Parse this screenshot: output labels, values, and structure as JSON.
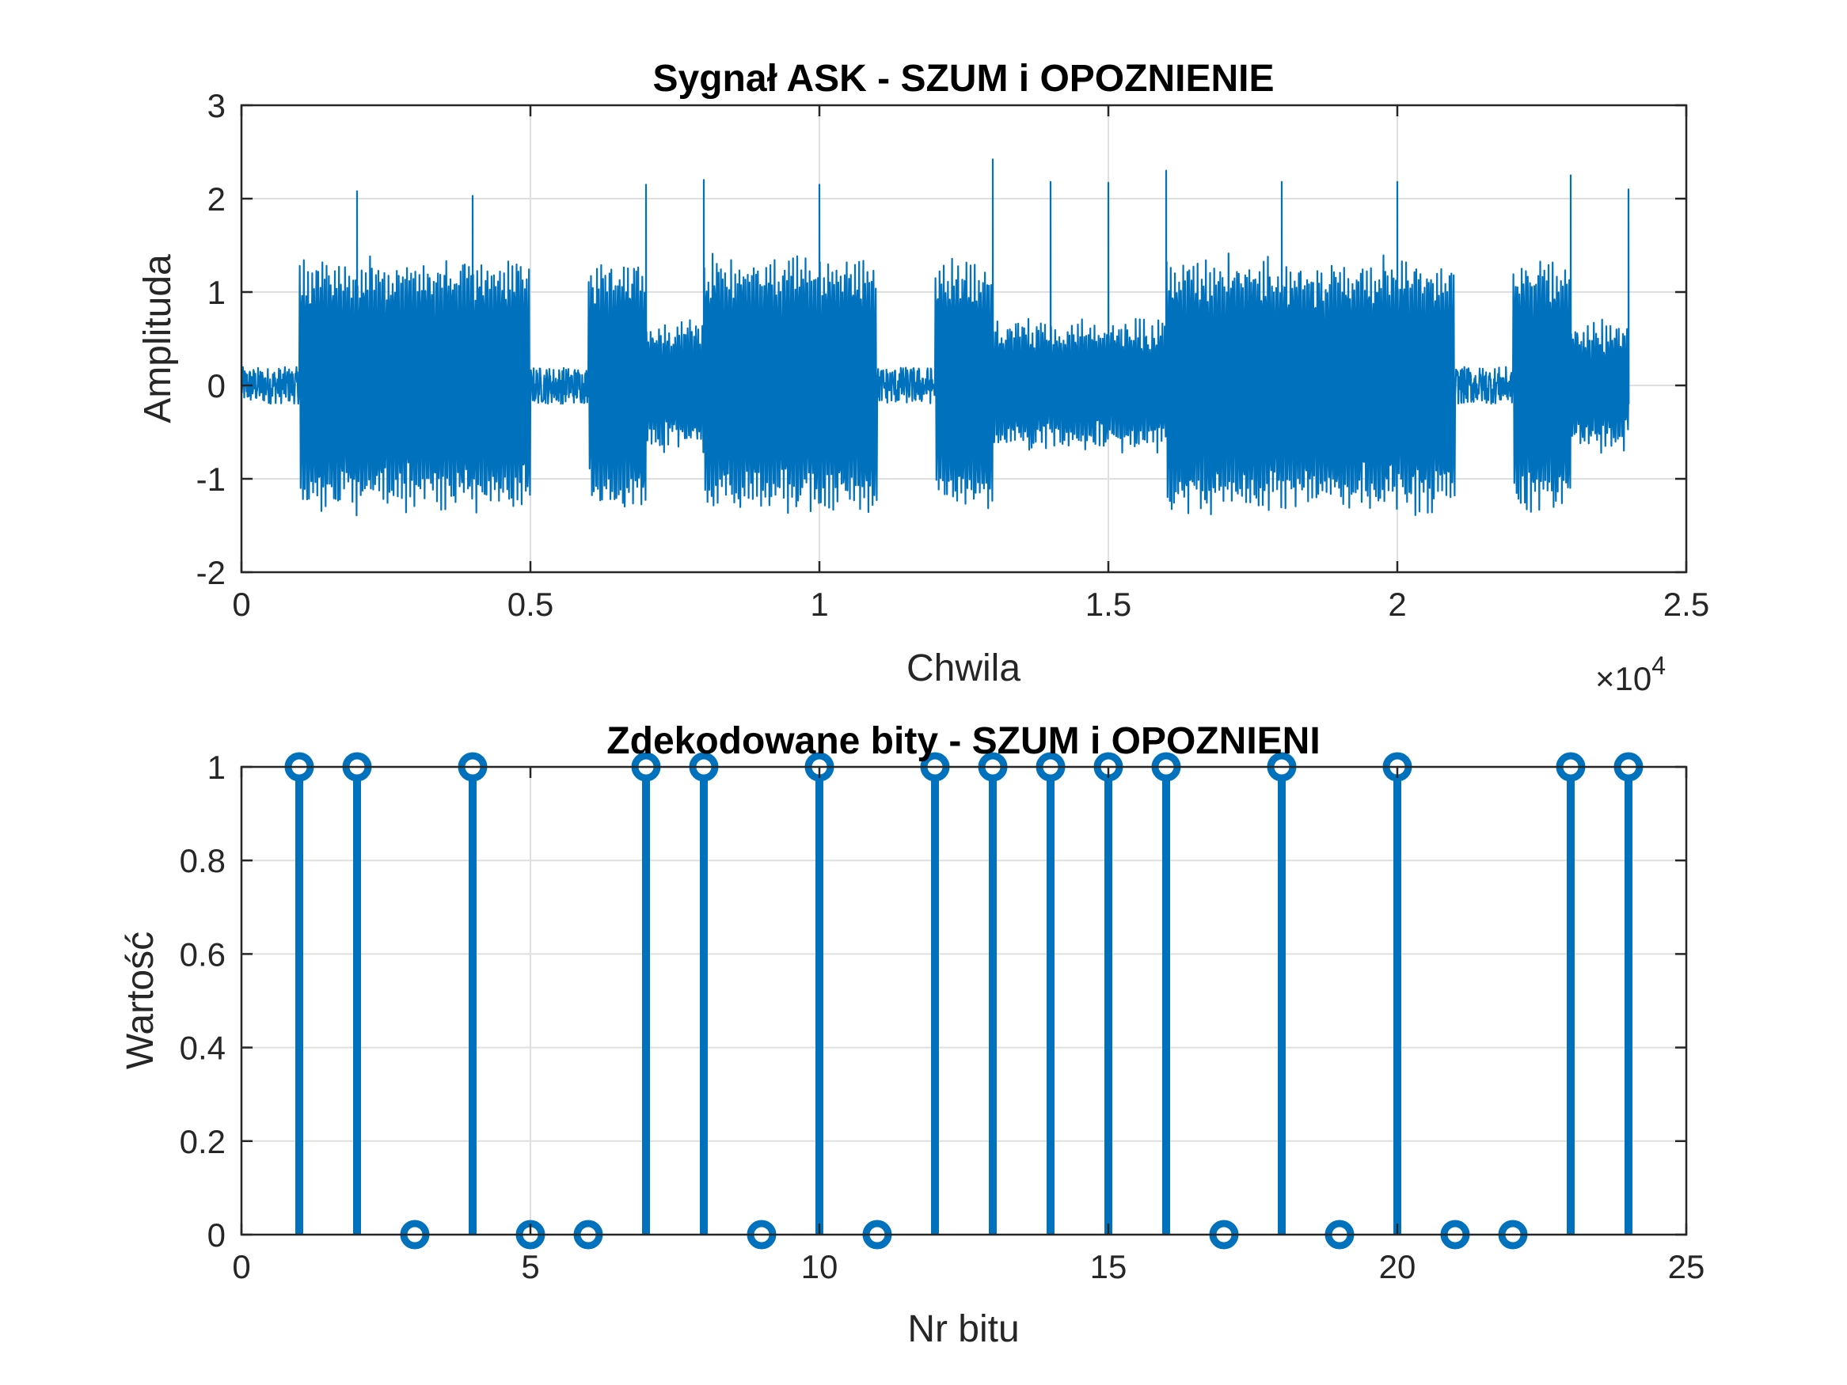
{
  "colors": {
    "series": "#0072bd",
    "axes": "#262626",
    "grid": "#dfdfdf"
  },
  "chart_data": [
    {
      "type": "line",
      "title": "Sygnał ASK - SZUM i OPOZNIENIE",
      "xlabel": "Chwila",
      "ylabel": "Amplituda",
      "xlim": [
        0,
        25000
      ],
      "ylim": [
        -2,
        3
      ],
      "xticks": [
        0,
        0.5,
        1,
        1.5,
        2,
        2.5
      ],
      "xtick_labels": [
        "0",
        "0.5",
        "1",
        "1.5",
        "2",
        "2.5"
      ],
      "x_exponent_label": "×10",
      "x_exponent_power": "4",
      "yticks": [
        -2,
        -1,
        0,
        1,
        2,
        3
      ],
      "ytick_labels": [
        "-2",
        "-1",
        "0",
        "1",
        "2",
        "3"
      ],
      "grid": true,
      "samples_per_bit": 1000,
      "bit_start_offset": 0,
      "signal_end": 24000,
      "envelope_by_bit": [
        {
          "bit": 1,
          "amplitude": 0.18
        },
        {
          "bit": 2,
          "amplitude": 1.25
        },
        {
          "bit": 3,
          "amplitude": 1.25
        },
        {
          "bit": 4,
          "amplitude": 1.25
        },
        {
          "bit": 5,
          "amplitude": 1.25
        },
        {
          "bit": 6,
          "amplitude": 0.18
        },
        {
          "bit": 7,
          "amplitude": 1.25
        },
        {
          "bit": 8,
          "amplitude": 0.6
        },
        {
          "bit": 9,
          "amplitude": 1.25
        },
        {
          "bit": 10,
          "amplitude": 1.25
        },
        {
          "bit": 11,
          "amplitude": 1.25
        },
        {
          "bit": 12,
          "amplitude": 0.18
        },
        {
          "bit": 13,
          "amplitude": 1.25
        },
        {
          "bit": 14,
          "amplitude": 0.6
        },
        {
          "bit": 15,
          "amplitude": 0.6
        },
        {
          "bit": 16,
          "amplitude": 0.6
        },
        {
          "bit": 17,
          "amplitude": 1.25
        },
        {
          "bit": 18,
          "amplitude": 1.25
        },
        {
          "bit": 19,
          "amplitude": 1.25
        },
        {
          "bit": 20,
          "amplitude": 1.25
        },
        {
          "bit": 21,
          "amplitude": 1.25
        },
        {
          "bit": 22,
          "amplitude": 0.18
        },
        {
          "bit": 23,
          "amplitude": 1.25
        },
        {
          "bit": 24,
          "amplitude": 0.6
        }
      ],
      "peaks": [
        {
          "x": 2000,
          "y": 2.08
        },
        {
          "x": 4000,
          "y": 2.03
        },
        {
          "x": 7000,
          "y": 2.15
        },
        {
          "x": 8000,
          "y": 2.2
        },
        {
          "x": 10000,
          "y": 2.15
        },
        {
          "x": 13000,
          "y": 2.42
        },
        {
          "x": 14000,
          "y": 2.18
        },
        {
          "x": 15000,
          "y": 2.17
        },
        {
          "x": 16000,
          "y": 2.3
        },
        {
          "x": 18000,
          "y": 2.18
        },
        {
          "x": 20000,
          "y": 2.18
        },
        {
          "x": 23000,
          "y": 2.25
        },
        {
          "x": 24000,
          "y": 2.1
        }
      ]
    },
    {
      "type": "stem",
      "title": "Zdekodowane bity - SZUM i OPOZNIENI",
      "xlabel": "Nr bitu",
      "ylabel": "Wartość",
      "xlim": [
        0,
        25
      ],
      "ylim": [
        0,
        1
      ],
      "xticks": [
        0,
        5,
        10,
        15,
        20,
        25
      ],
      "xtick_labels": [
        "0",
        "5",
        "10",
        "15",
        "20",
        "25"
      ],
      "yticks": [
        0,
        0.2,
        0.4,
        0.6,
        0.8,
        1
      ],
      "ytick_labels": [
        "0",
        "0.2",
        "0.4",
        "0.6",
        "0.8",
        "1"
      ],
      "grid": true,
      "x": [
        1,
        2,
        3,
        4,
        5,
        6,
        7,
        8,
        9,
        10,
        11,
        12,
        13,
        14,
        15,
        16,
        17,
        18,
        19,
        20,
        21,
        22,
        23,
        24
      ],
      "values": [
        1,
        1,
        0,
        1,
        0,
        0,
        1,
        1,
        0,
        1,
        0,
        1,
        1,
        1,
        1,
        1,
        0,
        1,
        0,
        1,
        0,
        0,
        1,
        1
      ]
    }
  ]
}
